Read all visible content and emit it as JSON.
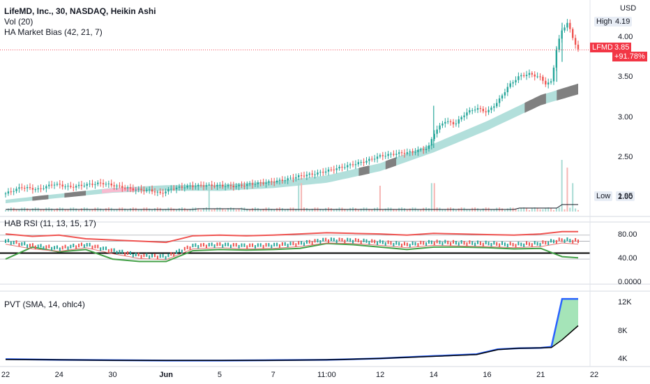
{
  "legend": {
    "title": "LifeMD, Inc., 30, NASDAQ, Heikin Ashi",
    "volume": "Vol (20)",
    "market_bias": "HA Market Bias (42, 21, 7)",
    "rsi": "HAB RSI (11, 13, 15, 17)",
    "pvt": "PVT (SMA, 14, ohlc4)"
  },
  "price_axis": {
    "currency": "USD",
    "high_label": "High",
    "high_value": "4.19",
    "low_label": "Low",
    "low_value": "1.95",
    "last_price": "3.85",
    "change": "+91.78%",
    "symbol": "LFMD",
    "ticks": [
      "4.00",
      "3.50",
      "3.00",
      "2.50",
      "2.00"
    ],
    "tick_values": [
      4.0,
      3.5,
      3.0,
      2.5,
      2.0
    ],
    "ylim": [
      1.85,
      4.3
    ]
  },
  "rsi_axis": {
    "ticks": [
      "80.00",
      "40.00",
      "0.0000"
    ],
    "tick_values": [
      80,
      40,
      0
    ],
    "ylim": [
      -2,
      102
    ]
  },
  "pvt_axis": {
    "ticks": [
      "12K",
      "8K",
      "4K"
    ],
    "tick_values": [
      12000,
      8000,
      4000
    ],
    "ylim": [
      3300,
      13600
    ]
  },
  "time_axis": {
    "labels": [
      "22",
      "24",
      "30",
      "Jun",
      "5",
      "7",
      "11:00",
      "12",
      "14",
      "16",
      "21",
      "22"
    ]
  },
  "colors": {
    "up": "#26a69a",
    "down": "#ef5350",
    "bias_band": "#b2dfdb",
    "bias_gray": "#808080",
    "bias_pink": "#f8bbd0",
    "rsi_upper": "#ef5350",
    "rsi_lower": "#43a047",
    "pvt_line": "#2962ff",
    "pvt_fill": "#a5e4b8",
    "price_label": "#f23645"
  },
  "chart_data": [
    {
      "type": "line",
      "name": "price",
      "title": "LifeMD, Inc., 30, NASDAQ, Heikin Ashi",
      "x": [
        "22",
        "24",
        "30",
        "Jun",
        "5",
        "7",
        "11:00",
        "12",
        "14",
        "16",
        "21",
        "22"
      ],
      "x_positions": [
        0,
        10,
        20,
        30,
        40,
        50,
        60,
        70,
        80,
        90,
        100,
        110
      ],
      "close_path": [
        [
          0,
          2.05
        ],
        [
          3,
          2.13
        ],
        [
          6,
          2.1
        ],
        [
          9,
          2.17
        ],
        [
          12,
          2.13
        ],
        [
          15,
          2.16
        ],
        [
          18,
          2.18
        ],
        [
          21,
          2.14
        ],
        [
          24,
          2.1
        ],
        [
          27,
          2.09
        ],
        [
          29,
          2.05
        ],
        [
          31,
          2.11
        ],
        [
          34,
          2.14
        ],
        [
          37,
          2.15
        ],
        [
          40,
          2.15
        ],
        [
          43,
          2.14
        ],
        [
          46,
          2.17
        ],
        [
          49,
          2.19
        ],
        [
          52,
          2.22
        ],
        [
          55,
          2.27
        ],
        [
          58,
          2.3
        ],
        [
          61,
          2.35
        ],
        [
          64,
          2.4
        ],
        [
          67,
          2.45
        ],
        [
          70,
          2.52
        ],
        [
          73,
          2.55
        ],
        [
          76,
          2.57
        ],
        [
          79,
          2.62
        ],
        [
          80,
          2.8
        ],
        [
          82,
          2.96
        ],
        [
          84,
          2.92
        ],
        [
          86,
          3.06
        ],
        [
          88,
          3.12
        ],
        [
          90,
          3.07
        ],
        [
          92,
          3.2
        ],
        [
          94,
          3.4
        ],
        [
          96,
          3.52
        ],
        [
          98,
          3.55
        ],
        [
          100,
          3.5
        ],
        [
          101,
          3.42
        ],
        [
          102,
          3.45
        ],
        [
          103,
          3.88
        ],
        [
          104,
          4.1
        ],
        [
          105,
          4.19
        ],
        [
          106,
          4.0
        ],
        [
          107,
          3.85
        ]
      ],
      "market_bias_path": [
        [
          0,
          1.95
        ],
        [
          10,
          2.02
        ],
        [
          20,
          2.09
        ],
        [
          30,
          2.12
        ],
        [
          40,
          2.12
        ],
        [
          50,
          2.16
        ],
        [
          60,
          2.23
        ],
        [
          70,
          2.38
        ],
        [
          80,
          2.62
        ],
        [
          90,
          2.9
        ],
        [
          100,
          3.22
        ],
        [
          107,
          3.36
        ]
      ],
      "high": 4.19,
      "low": 1.95,
      "last": 3.85,
      "change_pct": "+91.78%"
    },
    {
      "type": "bar",
      "name": "volume",
      "title": "Vol (20)",
      "spikes": [
        [
          38,
          0.5
        ],
        [
          55,
          0.55
        ],
        [
          70,
          0.5
        ],
        [
          80,
          0.55
        ],
        [
          104,
          1.0
        ],
        [
          105,
          0.85
        ],
        [
          106,
          0.55
        ]
      ]
    },
    {
      "type": "line",
      "name": "rsi",
      "title": "HAB RSI (11, 13, 15, 17)",
      "ylim": [
        0,
        100
      ],
      "upper_path": [
        [
          0,
          82
        ],
        [
          5,
          78
        ],
        [
          10,
          80
        ],
        [
          15,
          74
        ],
        [
          20,
          72
        ],
        [
          25,
          70
        ],
        [
          30,
          68
        ],
        [
          35,
          79
        ],
        [
          40,
          80
        ],
        [
          45,
          79
        ],
        [
          50,
          80
        ],
        [
          55,
          82
        ],
        [
          60,
          84
        ],
        [
          65,
          83
        ],
        [
          70,
          82
        ],
        [
          75,
          80
        ],
        [
          80,
          83
        ],
        [
          85,
          82
        ],
        [
          90,
          81
        ],
        [
          95,
          80
        ],
        [
          100,
          82
        ],
        [
          104,
          86
        ],
        [
          107,
          86
        ]
      ],
      "main_path": [
        [
          0,
          70
        ],
        [
          5,
          62
        ],
        [
          10,
          58
        ],
        [
          15,
          64
        ],
        [
          20,
          54
        ],
        [
          25,
          46
        ],
        [
          30,
          44
        ],
        [
          35,
          62
        ],
        [
          40,
          64
        ],
        [
          45,
          62
        ],
        [
          50,
          63
        ],
        [
          55,
          66
        ],
        [
          60,
          72
        ],
        [
          65,
          71
        ],
        [
          70,
          68
        ],
        [
          75,
          64
        ],
        [
          80,
          68
        ],
        [
          85,
          67
        ],
        [
          90,
          66
        ],
        [
          95,
          64
        ],
        [
          100,
          66
        ],
        [
          104,
          72
        ],
        [
          107,
          70
        ]
      ],
      "lower_path": [
        [
          0,
          40
        ],
        [
          5,
          60
        ],
        [
          10,
          52
        ],
        [
          15,
          56
        ],
        [
          20,
          40
        ],
        [
          25,
          36
        ],
        [
          30,
          36
        ],
        [
          35,
          54
        ],
        [
          40,
          56
        ],
        [
          45,
          55
        ],
        [
          50,
          56
        ],
        [
          55,
          58
        ],
        [
          60,
          66
        ],
        [
          65,
          64
        ],
        [
          70,
          60
        ],
        [
          75,
          56
        ],
        [
          80,
          60
        ],
        [
          85,
          60
        ],
        [
          90,
          59
        ],
        [
          95,
          57
        ],
        [
          100,
          58
        ],
        [
          104,
          44
        ],
        [
          107,
          42
        ]
      ],
      "midline": 50
    },
    {
      "type": "area",
      "name": "pvt",
      "title": "PVT (SMA, 14, ohlc4)",
      "pvt_path": [
        [
          0,
          4050
        ],
        [
          10,
          3950
        ],
        [
          20,
          3900
        ],
        [
          30,
          3850
        ],
        [
          40,
          3850
        ],
        [
          50,
          3900
        ],
        [
          60,
          3950
        ],
        [
          70,
          4150
        ],
        [
          80,
          4500
        ],
        [
          88,
          4750
        ],
        [
          92,
          5450
        ],
        [
          96,
          5600
        ],
        [
          100,
          5650
        ],
        [
          102,
          5800
        ],
        [
          104,
          12600
        ],
        [
          107,
          12600
        ]
      ],
      "sma_path": [
        [
          0,
          4000
        ],
        [
          10,
          3950
        ],
        [
          20,
          3880
        ],
        [
          30,
          3860
        ],
        [
          40,
          3860
        ],
        [
          50,
          3880
        ],
        [
          60,
          3950
        ],
        [
          70,
          4150
        ],
        [
          80,
          4450
        ],
        [
          88,
          4700
        ],
        [
          92,
          5400
        ],
        [
          96,
          5600
        ],
        [
          100,
          5650
        ],
        [
          102,
          5700
        ],
        [
          104,
          6800
        ],
        [
          107,
          8800
        ]
      ]
    }
  ]
}
